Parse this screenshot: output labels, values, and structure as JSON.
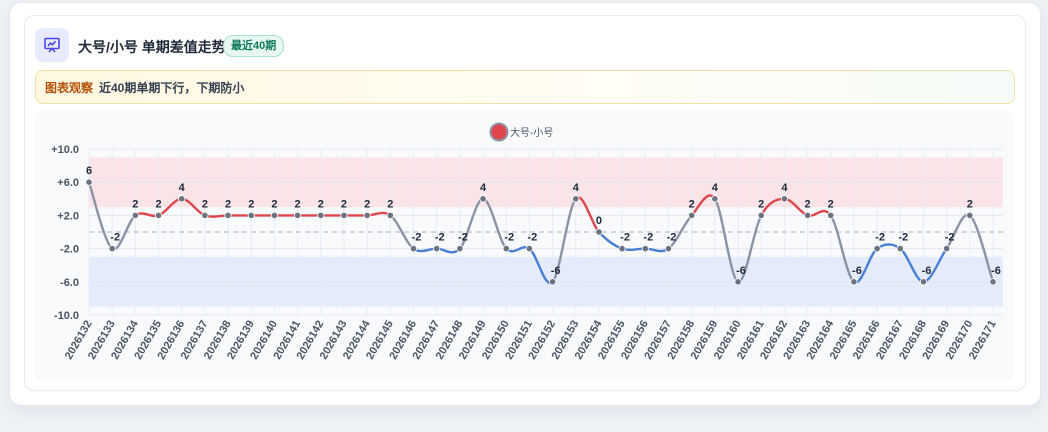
{
  "header": {
    "title": "大号/小号 单期差值走势",
    "badge": "最近40期",
    "icon": "presentation-chart-icon"
  },
  "observation": {
    "tag": "图表观察",
    "text": "近40期单期下行，下期防小"
  },
  "colors": {
    "accent": "#4f46e5",
    "up_line": "#e0474c",
    "down_line": "#4a7fd6",
    "neutral_line": "#8b93a7",
    "upper_band": "#fbe4e8",
    "lower_band": "#e4ebfb"
  },
  "chart_data": {
    "type": "line",
    "title": "",
    "xlabel": "",
    "ylabel": "",
    "ylim": [
      -10,
      10
    ],
    "yticks": [
      "+10.0",
      "+6.0",
      "+2.0",
      "-2.0",
      "-6.0",
      "-10.0"
    ],
    "yticks_values": [
      10,
      6,
      2,
      -2,
      -6,
      -10
    ],
    "bands": [
      {
        "from": 3,
        "to": 9,
        "color": "#fbe4e8"
      },
      {
        "from": -9,
        "to": -3,
        "color": "#e4ebfb"
      }
    ],
    "zero_line": "dashed",
    "grid": true,
    "legend_position": "top-center",
    "categories": [
      "2026132",
      "2026133",
      "2026134",
      "2026135",
      "2026136",
      "2026137",
      "2026138",
      "2026139",
      "2026140",
      "2026141",
      "2026142",
      "2026143",
      "2026144",
      "2026145",
      "2026146",
      "2026147",
      "2026148",
      "2026149",
      "2026150",
      "2026151",
      "2026152",
      "2026153",
      "2026154",
      "2026155",
      "2026156",
      "2026157",
      "2026158",
      "2026159",
      "2026160",
      "2026161",
      "2026162",
      "2026163",
      "2026164",
      "2026165",
      "2026166",
      "2026167",
      "2026168",
      "2026169",
      "2026170",
      "2026171"
    ],
    "series": [
      {
        "name": "大号-小号",
        "values": [
          6,
          -2,
          2,
          2,
          4,
          2,
          2,
          2,
          2,
          2,
          2,
          2,
          2,
          2,
          -2,
          -2,
          -2,
          4,
          -2,
          -2,
          -6,
          4,
          0,
          -2,
          -2,
          -2,
          2,
          4,
          -6,
          2,
          4,
          2,
          2,
          -6,
          -2,
          -2,
          -6,
          -2,
          2,
          -6
        ]
      }
    ]
  }
}
